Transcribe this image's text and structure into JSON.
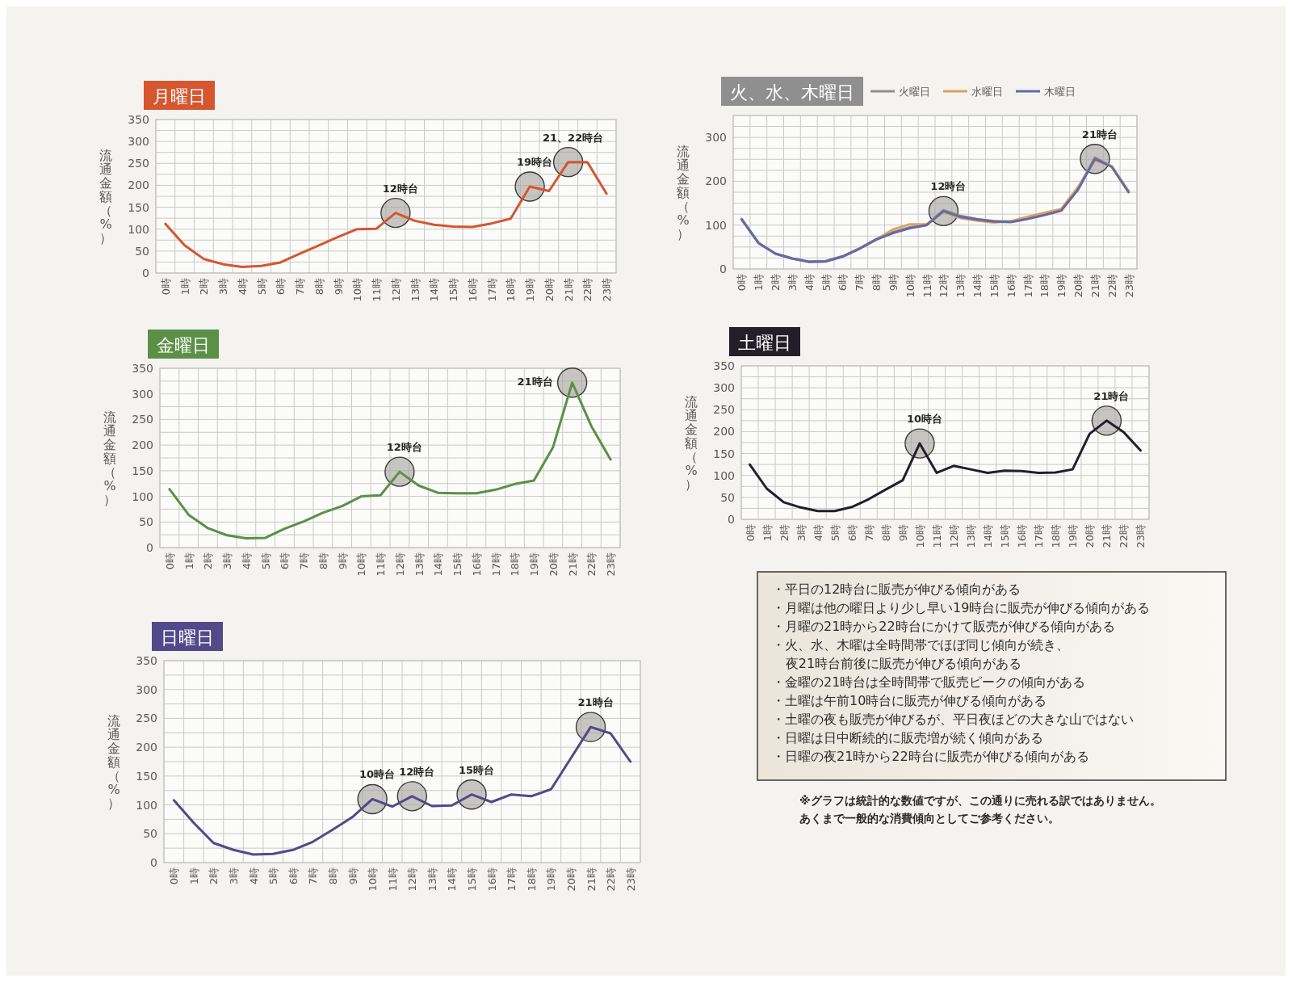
{
  "chart_data": [
    {
      "type": "line",
      "title": "月曜日",
      "ylabel": "流通金額（%）",
      "categories": [
        "0時",
        "1時",
        "2時",
        "3時",
        "4時",
        "5時",
        "6時",
        "7時",
        "8時",
        "9時",
        "10時",
        "11時",
        "12時",
        "13時",
        "14時",
        "15時",
        "16時",
        "17時",
        "18時",
        "19時",
        "20時",
        "21時",
        "22時",
        "23時"
      ],
      "series": [
        {
          "color": "#d5562f",
          "values": [
            112,
            63,
            32,
            20,
            14,
            16,
            24,
            44,
            63,
            82,
            100,
            101,
            137,
            119,
            110,
            106,
            105,
            113,
            124,
            197,
            187,
            253,
            253,
            181
          ]
        }
      ],
      "ylim": [
        0,
        350
      ],
      "yticks": [
        0,
        {
          "value": 25,
          "label": null
        },
        50,
        {
          "value": 75,
          "label": null
        },
        100,
        {
          "value": 125,
          "label": null
        },
        150,
        {
          "value": 175,
          "label": null
        },
        200,
        {
          "value": 225,
          "label": null
        },
        250,
        {
          "value": 275,
          "label": null
        },
        300,
        {
          "value": 325,
          "label": null
        },
        350
      ],
      "grid": true,
      "annotations": [
        {
          "text": "12時台",
          "x": "12時",
          "y": 137
        },
        {
          "text": "19時台",
          "x": "19時",
          "y": 197
        },
        {
          "text": "21、22時台",
          "x": "21時",
          "y": 253
        }
      ]
    },
    {
      "type": "line",
      "title": "火、水、木曜日",
      "ylabel": "流通金額（%）",
      "categories": [
        "0時",
        "1時",
        "2時",
        "3時",
        "4時",
        "5時",
        "6時",
        "7時",
        "8時",
        "9時",
        "10時",
        "11時",
        "12時",
        "13時",
        "14時",
        "15時",
        "16時",
        "17時",
        "18時",
        "19時",
        "20時",
        "21時",
        "22時",
        "23時"
      ],
      "series": [
        {
          "name": "火曜日",
          "color": "#8f8f8f",
          "values": [
            114,
            60,
            35,
            24,
            17,
            18,
            29,
            47,
            68,
            84,
            95,
            101,
            134,
            121,
            114,
            109,
            108,
            115,
            124,
            135,
            184,
            254,
            234,
            177
          ]
        },
        {
          "name": "水曜日",
          "color": "#dba263",
          "values": [
            null,
            null,
            null,
            null,
            null,
            null,
            null,
            46,
            67,
            90,
            102,
            102,
            130,
            116,
            110,
            106,
            109,
            119,
            128,
            137,
            187,
            248,
            234,
            177
          ]
        },
        {
          "name": "木曜日",
          "color": "#666aa0",
          "values": [
            113,
            59,
            35,
            24,
            16,
            17,
            28,
            46,
            67,
            82,
            93,
            100,
            132,
            119,
            113,
            108,
            107,
            114,
            123,
            133,
            181,
            251,
            233,
            175
          ]
        }
      ],
      "ylim": [
        0,
        350
      ],
      "yticks": [
        0,
        {
          "value": 25,
          "label": null
        },
        {
          "value": 50,
          "label": null
        },
        {
          "value": 75,
          "label": null
        },
        100,
        {
          "value": 125,
          "label": null
        },
        {
          "value": 150,
          "label": null
        },
        {
          "value": 175,
          "label": null
        },
        200,
        {
          "value": 225,
          "label": null
        },
        {
          "value": 250,
          "label": null
        },
        {
          "value": 275,
          "label": null
        },
        300,
        {
          "value": 325,
          "label": null
        },
        {
          "value": 350,
          "label": null
        }
      ],
      "grid": true,
      "legend": "top right",
      "annotations": [
        {
          "text": "12時台",
          "x": "12時",
          "y": 132
        },
        {
          "text": "21時台",
          "x": "21時",
          "y": 251
        }
      ]
    },
    {
      "type": "line",
      "title": "金曜日",
      "ylabel": "流通金額（%）",
      "categories": [
        "0時",
        "1時",
        "2時",
        "3時",
        "4時",
        "5時",
        "6時",
        "7時",
        "8時",
        "9時",
        "10時",
        "11時",
        "12時",
        "13時",
        "14時",
        "15時",
        "16時",
        "17時",
        "18時",
        "19時",
        "20時",
        "21時",
        "22時",
        "23時"
      ],
      "series": [
        {
          "color": "#5b9046",
          "values": [
            114,
            64,
            38,
            24,
            18,
            19,
            37,
            51,
            68,
            81,
            100,
            102,
            148,
            121,
            107,
            106,
            106,
            113,
            124,
            131,
            196,
            322,
            237,
            172
          ]
        }
      ],
      "ylim": [
        0,
        350
      ],
      "yticks": [
        0,
        {
          "value": 25,
          "label": null
        },
        50,
        {
          "value": 75,
          "label": null
        },
        100,
        {
          "value": 125,
          "label": null
        },
        150,
        {
          "value": 175,
          "label": null
        },
        200,
        {
          "value": 225,
          "label": null
        },
        250,
        {
          "value": 275,
          "label": null
        },
        300,
        {
          "value": 325,
          "label": null
        },
        350
      ],
      "grid": true,
      "annotations": [
        {
          "text": "12時台",
          "x": "12時",
          "y": 148
        },
        {
          "text": "21時台",
          "x": "21時",
          "y": 322
        }
      ]
    },
    {
      "type": "line",
      "title": "土曜日",
      "ylabel": "流通金額（%）",
      "categories": [
        "0時",
        "1時",
        "2時",
        "3時",
        "4時",
        "5時",
        "6時",
        "7時",
        "8時",
        "9時",
        "10時",
        "11時",
        "12時",
        "13時",
        "14時",
        "15時",
        "16時",
        "17時",
        "18時",
        "19時",
        "20時",
        "21時",
        "22時",
        "23時"
      ],
      "series": [
        {
          "color": "#221f2b",
          "values": [
            125,
            70,
            39,
            27,
            19,
            19,
            28,
            46,
            68,
            89,
            173,
            106,
            122,
            114,
            106,
            111,
            110,
            106,
            107,
            114,
            195,
            225,
            199,
            157
          ]
        }
      ],
      "ylim": [
        0,
        350
      ],
      "yticks": [
        0,
        {
          "value": 25,
          "label": null
        },
        50,
        {
          "value": 75,
          "label": null
        },
        100,
        {
          "value": 125,
          "label": null
        },
        150,
        {
          "value": 175,
          "label": null
        },
        200,
        {
          "value": 225,
          "label": null
        },
        250,
        {
          "value": 275,
          "label": null
        },
        300,
        {
          "value": 325,
          "label": null
        },
        350
      ],
      "grid": true,
      "annotations": [
        {
          "text": "10時台",
          "x": "10時",
          "y": 173
        },
        {
          "text": "21時台",
          "x": "21時",
          "y": 225
        }
      ]
    },
    {
      "type": "line",
      "title": "日曜日",
      "ylabel": "流通金額（%）",
      "categories": [
        "0時",
        "1時",
        "2時",
        "3時",
        "4時",
        "5時",
        "6時",
        "7時",
        "8時",
        "9時",
        "10時",
        "11時",
        "12時",
        "13時",
        "14時",
        "15時",
        "16時",
        "17時",
        "18時",
        "19時",
        "20時",
        "21時",
        "22時",
        "23時"
      ],
      "series": [
        {
          "color": "#51498a",
          "values": [
            108,
            69,
            34,
            22,
            14,
            15,
            22,
            36,
            57,
            79,
            110,
            97,
            115,
            98,
            99,
            118,
            105,
            118,
            115,
            127,
            181,
            235,
            224,
            175
          ]
        }
      ],
      "ylim": [
        0,
        350
      ],
      "yticks": [
        0,
        {
          "value": 25,
          "label": null
        },
        50,
        {
          "value": 75,
          "label": null
        },
        100,
        {
          "value": 125,
          "label": null
        },
        150,
        {
          "value": 175,
          "label": null
        },
        200,
        {
          "value": 225,
          "label": null
        },
        250,
        {
          "value": 275,
          "label": null
        },
        300,
        {
          "value": 325,
          "label": null
        },
        350
      ],
      "grid": true,
      "annotations": [
        {
          "text": "10時台",
          "x": "10時",
          "y": 110
        },
        {
          "text": "12時台",
          "x": "12時",
          "y": 115
        },
        {
          "text": "15時台",
          "x": "15時",
          "y": 118
        },
        {
          "text": "21時台",
          "x": "21時",
          "y": 235
        }
      ]
    },
    {
      "type": "other",
      "annotations": [
        "・平日の12時台に販売が伸びる傾向がある",
        "・月曜は他の曜日より少し早い19時台に販売が伸びる傾向がある",
        "・月曜の21時から22時台にかけて販売が伸びる傾向がある",
        "・火、水、木曜は全時間帯でほぼ同じ傾向が続き、夜21時台前後に販売が伸びる傾向がある",
        "・金曜の21時台は全時間帯で販売ピークの傾向がある",
        "・土曜は午前10時台に販売が伸びる傾向がある",
        "・土曜の夜も販売が伸びるが、平日夜ほどの大きな山ではない",
        "・日曜は日中断続的に販売増が続く傾向がある",
        "・日曜の夜21時から22時台に販売が伸びる傾向がある"
      ]
    },
    {
      "type": "other",
      "annotations": [
        "※グラフは統計的な数値ですが、この通りに売れる訳ではありません。",
        "あくまで一般的な消費傾向としてご参考ください。"
      ]
    }
  ]
}
